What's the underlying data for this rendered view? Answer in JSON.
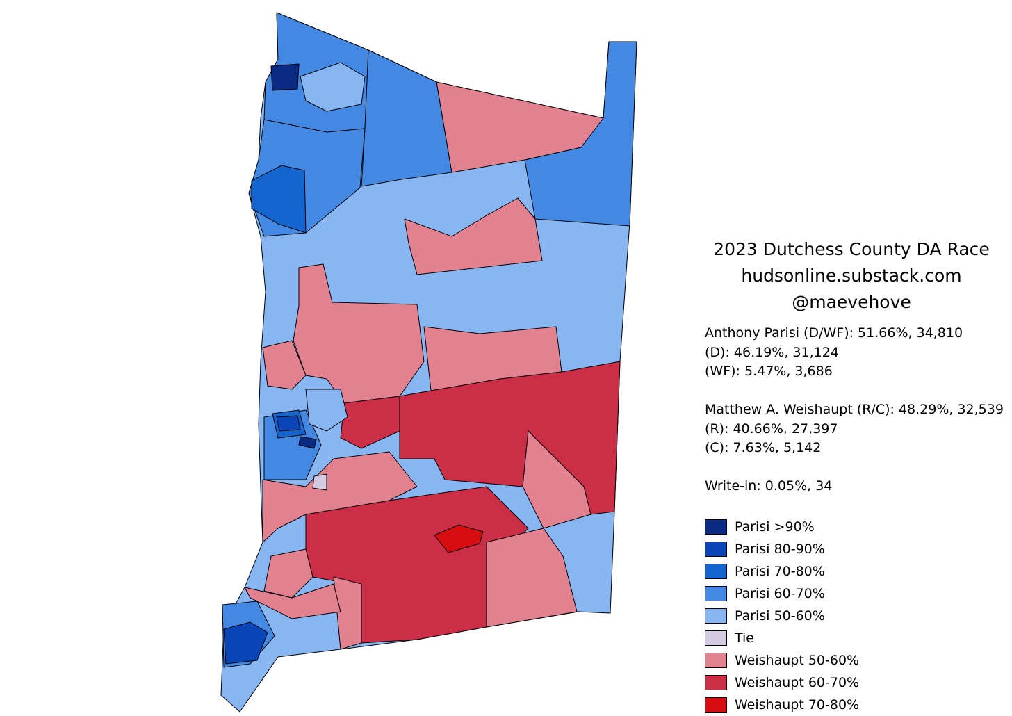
{
  "title": {
    "line1": "2023 Dutchess County DA Race",
    "line2": "hudsonline.substack.com",
    "line3": "@maevehove"
  },
  "results": {
    "parisi_total": "Anthony Parisi (D/WF): 51.66%, 34,810",
    "parisi_d": "(D): 46.19%, 31,124",
    "parisi_wf": "(WF): 5.47%, 3,686",
    "weishaupt_total": "Matthew A. Weishaupt (R/C): 48.29%, 32,539",
    "weishaupt_r": "(R): 40.66%, 27,397",
    "weishaupt_c": "(C): 7.63%, 5,142",
    "write_in": "Write-in: 0.05%, 34"
  },
  "legend": [
    {
      "label": "Parisi >90%",
      "color": "#0a2a83"
    },
    {
      "label": "Parisi 80-90%",
      "color": "#0a45b8"
    },
    {
      "label": "Parisi 70-80%",
      "color": "#1565cf"
    },
    {
      "label": "Parisi 60-70%",
      "color": "#4389e3"
    },
    {
      "label": "Parisi 50-60%",
      "color": "#88b6f2"
    },
    {
      "label": "Tie",
      "color": "#d6c9e2"
    },
    {
      "label": "Weishaupt 50-60%",
      "color": "#e2818f"
    },
    {
      "label": "Weishaupt 60-70%",
      "color": "#cc2e48"
    },
    {
      "label": "Weishaupt 70-80%",
      "color": "#d60e10"
    }
  ]
}
